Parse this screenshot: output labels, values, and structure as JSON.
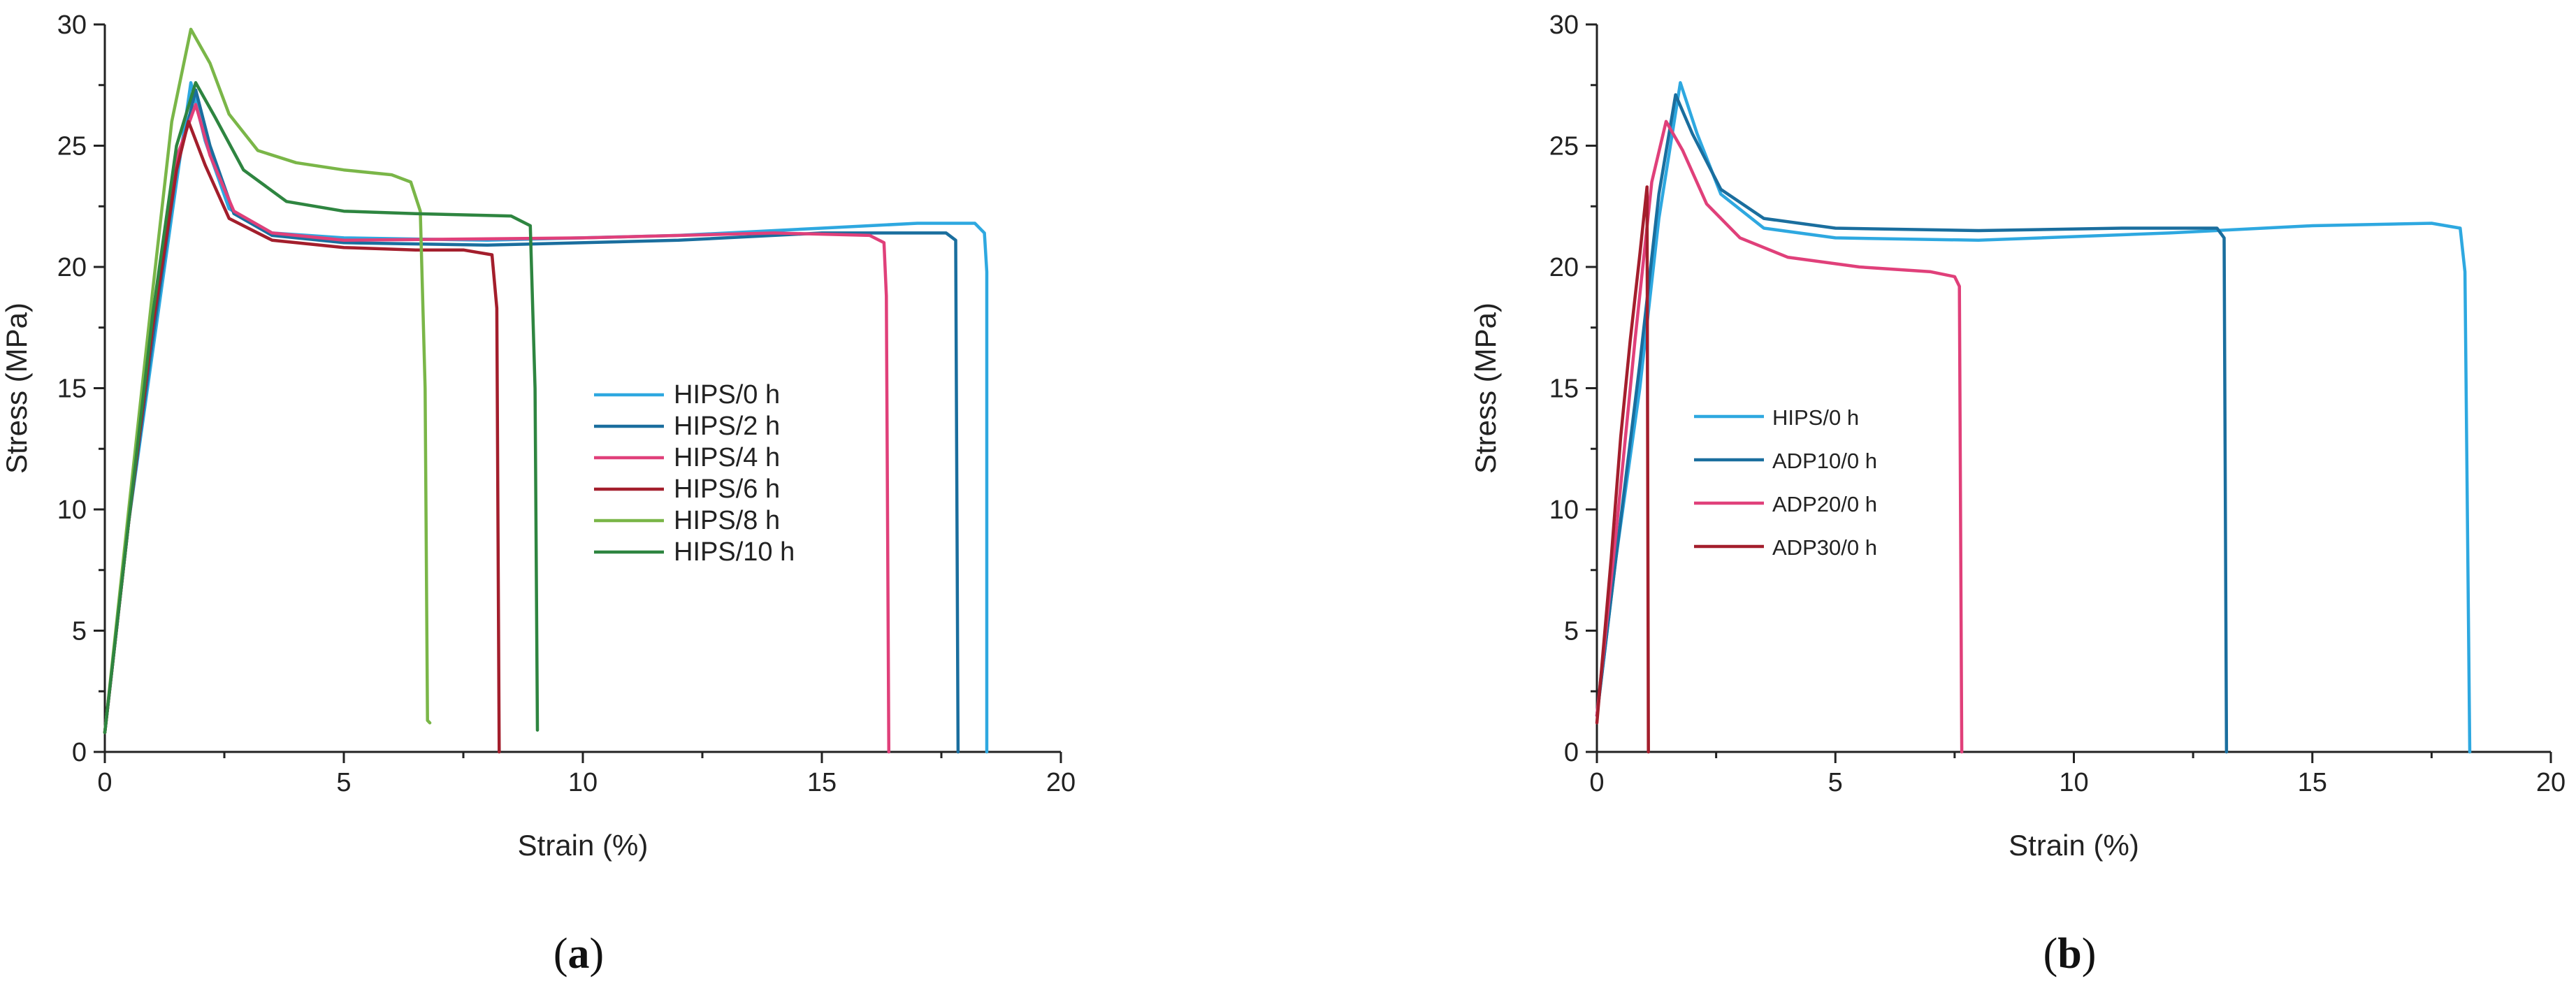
{
  "chart_data": [
    {
      "type": "line",
      "panel_label": "a",
      "xlabel": "Strain (%)",
      "ylabel": "Stress (MPa)",
      "xlim": [
        0,
        20
      ],
      "ylim": [
        0,
        30
      ],
      "xticks": [
        0,
        5,
        10,
        15,
        20
      ],
      "yticks": [
        0,
        5,
        10,
        15,
        20,
        25,
        30
      ],
      "x_tick_labels": [
        "0",
        "5",
        "10",
        "15",
        "20"
      ],
      "y_tick_labels": [
        "0",
        "5",
        "10",
        "15",
        "20",
        "25",
        "30"
      ],
      "legend_position": "center-right",
      "series": [
        {
          "name": "HIPS/0 h",
          "color": "#2ea8e0",
          "points": [
            [
              0,
              0.8
            ],
            [
              0.5,
              9.5
            ],
            [
              1.0,
              16.5
            ],
            [
              1.5,
              23.5
            ],
            [
              1.8,
              27.6
            ],
            [
              2.1,
              25.2
            ],
            [
              2.6,
              22.4
            ],
            [
              3.5,
              21.4
            ],
            [
              5,
              21.2
            ],
            [
              8,
              21.1
            ],
            [
              12,
              21.3
            ],
            [
              15,
              21.6
            ],
            [
              17,
              21.8
            ],
            [
              18.2,
              21.8
            ],
            [
              18.4,
              21.4
            ],
            [
              18.45,
              19.8
            ],
            [
              18.45,
              0
            ]
          ]
        },
        {
          "name": "HIPS/2 h",
          "color": "#1a6e9e",
          "points": [
            [
              0,
              0.8
            ],
            [
              0.5,
              9.5
            ],
            [
              1.0,
              17
            ],
            [
              1.5,
              24
            ],
            [
              1.9,
              27.3
            ],
            [
              2.2,
              25
            ],
            [
              2.7,
              22.2
            ],
            [
              3.5,
              21.3
            ],
            [
              5,
              21
            ],
            [
              8,
              20.9
            ],
            [
              12,
              21.1
            ],
            [
              15,
              21.4
            ],
            [
              17.6,
              21.4
            ],
            [
              17.8,
              21.1
            ],
            [
              17.85,
              0
            ]
          ]
        },
        {
          "name": "HIPS/4 h",
          "color": "#e0407a",
          "points": [
            [
              0,
              0.8
            ],
            [
              0.5,
              9.5
            ],
            [
              1.0,
              17.5
            ],
            [
              1.5,
              24.5
            ],
            [
              1.9,
              26.7
            ],
            [
              2.2,
              24.6
            ],
            [
              2.7,
              22.3
            ],
            [
              3.5,
              21.4
            ],
            [
              5,
              21.1
            ],
            [
              10,
              21.2
            ],
            [
              14,
              21.4
            ],
            [
              16,
              21.3
            ],
            [
              16.3,
              21.0
            ],
            [
              16.35,
              18.8
            ],
            [
              16.4,
              0
            ]
          ]
        },
        {
          "name": "HIPS/6 h",
          "color": "#a31e2c",
          "points": [
            [
              0,
              0.8
            ],
            [
              0.5,
              9.5
            ],
            [
              1.0,
              17.5
            ],
            [
              1.5,
              24
            ],
            [
              1.75,
              26.0
            ],
            [
              2.1,
              24.2
            ],
            [
              2.6,
              22
            ],
            [
              3.5,
              21.1
            ],
            [
              5,
              20.8
            ],
            [
              6.5,
              20.7
            ],
            [
              7.5,
              20.7
            ],
            [
              8.1,
              20.5
            ],
            [
              8.2,
              18.3
            ],
            [
              8.25,
              0
            ]
          ]
        },
        {
          "name": "HIPS/8 h",
          "color": "#7ab648",
          "points": [
            [
              0,
              0.8
            ],
            [
              0.5,
              10
            ],
            [
              1.0,
              19
            ],
            [
              1.4,
              26
            ],
            [
              1.8,
              29.8
            ],
            [
              2.2,
              28.4
            ],
            [
              2.6,
              26.3
            ],
            [
              3.2,
              24.8
            ],
            [
              4,
              24.3
            ],
            [
              5,
              24.0
            ],
            [
              6,
              23.8
            ],
            [
              6.4,
              23.5
            ],
            [
              6.6,
              22.3
            ],
            [
              6.7,
              15
            ],
            [
              6.75,
              1.3
            ],
            [
              6.8,
              1.2
            ]
          ]
        },
        {
          "name": "HIPS/10 h",
          "color": "#2e8540",
          "points": [
            [
              0,
              0.8
            ],
            [
              0.5,
              9.5
            ],
            [
              1.0,
              18
            ],
            [
              1.5,
              25
            ],
            [
              1.9,
              27.6
            ],
            [
              2.3,
              26.2
            ],
            [
              2.9,
              24
            ],
            [
              3.8,
              22.7
            ],
            [
              5,
              22.3
            ],
            [
              6.5,
              22.2
            ],
            [
              8.5,
              22.1
            ],
            [
              8.9,
              21.7
            ],
            [
              9.0,
              15
            ],
            [
              9.05,
              0.9
            ]
          ]
        }
      ]
    },
    {
      "type": "line",
      "panel_label": "b",
      "xlabel": "Strain (%)",
      "ylabel": "Stress (MPa)",
      "xlim": [
        0,
        20
      ],
      "ylim": [
        0,
        30
      ],
      "xticks": [
        0,
        5,
        10,
        15,
        20
      ],
      "yticks": [
        0,
        5,
        10,
        15,
        20,
        25,
        30
      ],
      "x_tick_labels": [
        "0",
        "5",
        "10",
        "15",
        "20"
      ],
      "y_tick_labels": [
        "0",
        "5",
        "10",
        "15",
        "20",
        "25",
        "30"
      ],
      "legend_position": "center-left",
      "series": [
        {
          "name": "HIPS/0 h",
          "color": "#2ea8e0",
          "points": [
            [
              0,
              1.5
            ],
            [
              0.4,
              8
            ],
            [
              0.9,
              15
            ],
            [
              1.3,
              22
            ],
            [
              1.75,
              27.6
            ],
            [
              2.1,
              25.5
            ],
            [
              2.6,
              23
            ],
            [
              3.5,
              21.6
            ],
            [
              5,
              21.2
            ],
            [
              8,
              21.1
            ],
            [
              12,
              21.4
            ],
            [
              15,
              21.7
            ],
            [
              17.5,
              21.8
            ],
            [
              18.1,
              21.6
            ],
            [
              18.2,
              19.8
            ],
            [
              18.3,
              0
            ]
          ]
        },
        {
          "name": "ADP10/0 h",
          "color": "#1a6e9e",
          "points": [
            [
              0,
              1.5
            ],
            [
              0.4,
              8
            ],
            [
              0.9,
              16
            ],
            [
              1.3,
              23
            ],
            [
              1.65,
              27.1
            ],
            [
              2.0,
              25.5
            ],
            [
              2.6,
              23.2
            ],
            [
              3.5,
              22
            ],
            [
              5,
              21.6
            ],
            [
              8,
              21.5
            ],
            [
              11,
              21.6
            ],
            [
              13,
              21.6
            ],
            [
              13.15,
              21.2
            ],
            [
              13.2,
              0
            ]
          ]
        },
        {
          "name": "ADP20/0 h",
          "color": "#e0407a",
          "points": [
            [
              0,
              1.5
            ],
            [
              0.4,
              9
            ],
            [
              0.8,
              17
            ],
            [
              1.15,
              23.5
            ],
            [
              1.45,
              26.0
            ],
            [
              1.8,
              24.8
            ],
            [
              2.3,
              22.6
            ],
            [
              3.0,
              21.2
            ],
            [
              4,
              20.4
            ],
            [
              5.5,
              20.0
            ],
            [
              7,
              19.8
            ],
            [
              7.5,
              19.6
            ],
            [
              7.6,
              19.2
            ],
            [
              7.65,
              0
            ]
          ]
        },
        {
          "name": "ADP30/0 h",
          "color": "#a31e2c",
          "points": [
            [
              0,
              1.2
            ],
            [
              0.3,
              8
            ],
            [
              0.5,
              13
            ],
            [
              0.7,
              17
            ],
            [
              0.9,
              20.5
            ],
            [
              1.05,
              23.3
            ],
            [
              1.08,
              0
            ]
          ]
        }
      ]
    }
  ]
}
